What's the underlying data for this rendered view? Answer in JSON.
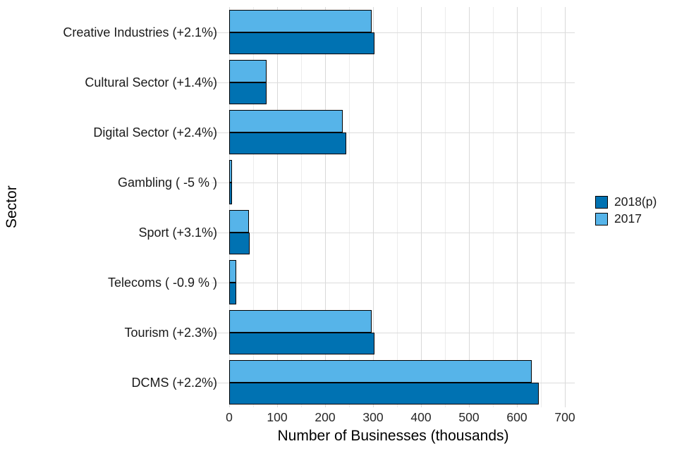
{
  "chart_data": {
    "type": "bar",
    "orientation": "horizontal",
    "title": "",
    "xlabel": "Number of Businesses (thousands)",
    "ylabel": "Sector",
    "categories": [
      "Creative Industries (+2.1%)",
      "Cultural Sector (+1.4%)",
      "Digital Sector (+2.4%)",
      "Gambling ( -5 % )",
      "Sport (+3.1%)",
      "Telecoms ( -0.9 % )",
      "Tourism (+2.3%)",
      "DCMS (+2.2%)"
    ],
    "series": [
      {
        "name": "2018(p)",
        "color": "#0072B2",
        "values": [
          298,
          74,
          239,
          1,
          38,
          10,
          299,
          641
        ]
      },
      {
        "name": "2017",
        "color": "#56B4E9",
        "values": [
          292,
          73,
          233,
          1,
          37,
          10.1,
          292,
          627
        ]
      }
    ],
    "within_group_order_top_to_bottom": [
      "2017",
      "2018(p)"
    ],
    "xlim": [
      0,
      700
    ],
    "xticks": [
      0,
      100,
      200,
      300,
      400,
      500,
      600,
      700
    ],
    "minor_tick_step": 50,
    "grid": true,
    "legend_position": "right",
    "bar_border_color": "#000000",
    "colors": {
      "dark_blue": "#0072B2",
      "light_blue": "#56B4E9",
      "gridline": "#dcdcdc"
    }
  }
}
